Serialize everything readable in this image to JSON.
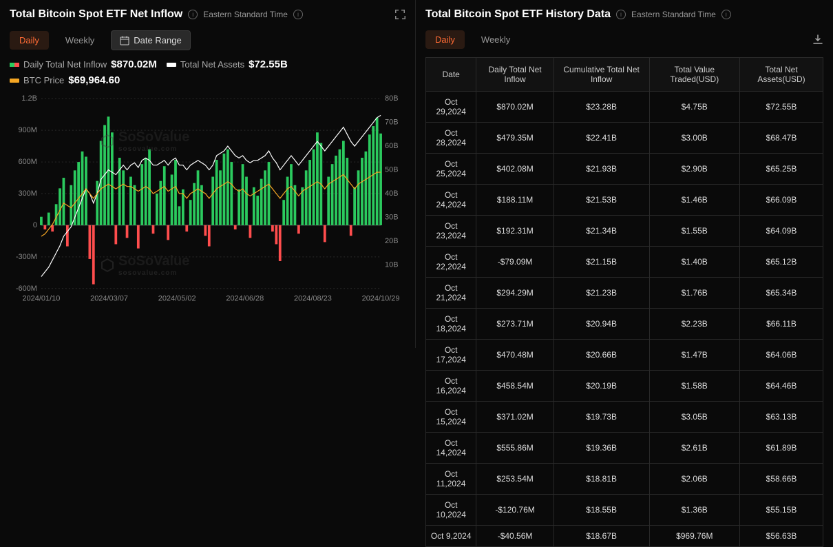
{
  "left": {
    "title": "Total Bitcoin Spot ETF Net Inflow",
    "timezone": "Eastern Standard Time",
    "tabs": {
      "daily": "Daily",
      "weekly": "Weekly",
      "dateRange": "Date Range"
    },
    "legend": {
      "netInflow": {
        "label": "Daily Total Net Inflow",
        "value": "$870.02M",
        "posColor": "#2bca5e",
        "negColor": "#ff4d4d"
      },
      "netAssets": {
        "label": "Total Net Assets",
        "value": "$72.55B",
        "color": "#ffffff"
      },
      "btcPrice": {
        "label": "BTC Price",
        "value": "$69,964.60",
        "color": "#f5a623"
      }
    },
    "chart": {
      "type": "combo",
      "background": "#0a0a0a",
      "grid_color": "#2a2a2a",
      "left_axis": {
        "label_fontsize": 11,
        "ticks": [
          "1.2B",
          "900M",
          "600M",
          "300M",
          "0",
          "-300M",
          "-600M"
        ],
        "ylim": [
          -600,
          1200
        ]
      },
      "right_axis": {
        "ticks": [
          "80B",
          "70B",
          "60B",
          "50B",
          "40B",
          "30B",
          "20B",
          "10B"
        ]
      },
      "x_ticks": [
        "2024/01/10",
        "2024/03/07",
        "2024/05/02",
        "2024/06/28",
        "2024/08/23",
        "2024/10/29"
      ],
      "bars": {
        "color_pos": "#2bca5e",
        "color_neg": "#ff4d4d",
        "values": [
          80,
          -40,
          120,
          -60,
          200,
          350,
          450,
          -200,
          380,
          520,
          600,
          700,
          650,
          -320,
          -560,
          420,
          800,
          950,
          1030,
          880,
          -180,
          640,
          520,
          -120,
          460,
          380,
          -220,
          580,
          640,
          720,
          -80,
          300,
          420,
          560,
          -140,
          480,
          620,
          180,
          340,
          -60,
          240,
          400,
          520,
          380,
          -100,
          -200,
          460,
          620,
          520,
          680,
          720,
          600,
          -40,
          340,
          580,
          460,
          -120,
          360,
          280,
          440,
          520,
          600,
          -60,
          -180,
          -340,
          240,
          460,
          580,
          380,
          -80,
          360,
          520,
          620,
          720,
          880,
          780,
          -160,
          460,
          580,
          660,
          720,
          800,
          640,
          -100,
          360,
          520,
          640,
          700,
          860,
          940,
          1020,
          870
        ]
      },
      "line_assets": {
        "color": "#ffffff",
        "width": 1.2,
        "values": [
          5,
          7,
          9,
          12,
          15,
          18,
          22,
          24,
          26,
          30,
          34,
          38,
          42,
          40,
          36,
          40,
          46,
          48,
          50,
          49,
          48,
          50,
          52,
          50,
          52,
          53,
          51,
          54,
          55,
          54,
          52,
          52,
          53,
          54,
          52,
          54,
          55,
          52,
          52,
          50,
          52,
          53,
          54,
          53,
          52,
          50,
          52,
          56,
          57,
          58,
          60,
          58,
          56,
          55,
          56,
          54,
          53,
          54,
          54,
          55,
          56,
          58,
          55,
          53,
          50,
          52,
          54,
          56,
          54,
          52,
          54,
          56,
          58,
          60,
          62,
          60,
          58,
          60,
          62,
          64,
          66,
          68,
          65,
          62,
          60,
          62,
          64,
          66,
          68,
          70,
          72,
          73
        ]
      },
      "line_btc": {
        "color": "#f5a623",
        "width": 1.2,
        "values": [
          22,
          23,
          25,
          27,
          30,
          33,
          36,
          35,
          34,
          36,
          38,
          40,
          42,
          40,
          38,
          40,
          42,
          43,
          44,
          43,
          42,
          43,
          44,
          43,
          43,
          42,
          41,
          42,
          43,
          42,
          40,
          41,
          42,
          43,
          41,
          42,
          43,
          40,
          40,
          38,
          40,
          41,
          42,
          41,
          40,
          38,
          40,
          42,
          43,
          44,
          45,
          44,
          42,
          41,
          42,
          40,
          39,
          40,
          41,
          42,
          43,
          44,
          42,
          40,
          38,
          40,
          42,
          43,
          41,
          39,
          41,
          42,
          43,
          44,
          45,
          44,
          42,
          44,
          45,
          46,
          47,
          48,
          46,
          44,
          42,
          44,
          45,
          46,
          47,
          48,
          49,
          49
        ]
      }
    },
    "watermark": {
      "text": "SoSoValue",
      "sub": "sosovalue.com"
    }
  },
  "right": {
    "title": "Total Bitcoin Spot ETF History Data",
    "timezone": "Eastern Standard Time",
    "tabs": {
      "daily": "Daily",
      "weekly": "Weekly"
    },
    "columns": [
      "Date",
      "Daily Total Net Inflow",
      "Cumulative Total Net Inflow",
      "Total Value Traded(USD)",
      "Total Net Assets(USD)"
    ],
    "rows": [
      {
        "date": "Oct 29,2024",
        "inflow": "$870.02M",
        "dir": "pos",
        "cum": "$23.28B",
        "traded": "$4.75B",
        "assets": "$72.55B"
      },
      {
        "date": "Oct 28,2024",
        "inflow": "$479.35M",
        "dir": "pos",
        "cum": "$22.41B",
        "traded": "$3.00B",
        "assets": "$68.47B"
      },
      {
        "date": "Oct 25,2024",
        "inflow": "$402.08M",
        "dir": "pos",
        "cum": "$21.93B",
        "traded": "$2.90B",
        "assets": "$65.25B"
      },
      {
        "date": "Oct 24,2024",
        "inflow": "$188.11M",
        "dir": "pos",
        "cum": "$21.53B",
        "traded": "$1.46B",
        "assets": "$66.09B"
      },
      {
        "date": "Oct 23,2024",
        "inflow": "$192.31M",
        "dir": "pos",
        "cum": "$21.34B",
        "traded": "$1.55B",
        "assets": "$64.09B"
      },
      {
        "date": "Oct 22,2024",
        "inflow": "-$79.09M",
        "dir": "neg",
        "cum": "$21.15B",
        "traded": "$1.40B",
        "assets": "$65.12B"
      },
      {
        "date": "Oct 21,2024",
        "inflow": "$294.29M",
        "dir": "pos",
        "cum": "$21.23B",
        "traded": "$1.76B",
        "assets": "$65.34B"
      },
      {
        "date": "Oct 18,2024",
        "inflow": "$273.71M",
        "dir": "pos",
        "cum": "$20.94B",
        "traded": "$2.23B",
        "assets": "$66.11B"
      },
      {
        "date": "Oct 17,2024",
        "inflow": "$470.48M",
        "dir": "pos",
        "cum": "$20.66B",
        "traded": "$1.47B",
        "assets": "$64.06B"
      },
      {
        "date": "Oct 16,2024",
        "inflow": "$458.54M",
        "dir": "pos",
        "cum": "$20.19B",
        "traded": "$1.58B",
        "assets": "$64.46B"
      },
      {
        "date": "Oct 15,2024",
        "inflow": "$371.02M",
        "dir": "pos",
        "cum": "$19.73B",
        "traded": "$3.05B",
        "assets": "$63.13B"
      },
      {
        "date": "Oct 14,2024",
        "inflow": "$555.86M",
        "dir": "pos",
        "cum": "$19.36B",
        "traded": "$2.61B",
        "assets": "$61.89B"
      },
      {
        "date": "Oct 11,2024",
        "inflow": "$253.54M",
        "dir": "pos",
        "cum": "$18.81B",
        "traded": "$2.06B",
        "assets": "$58.66B"
      },
      {
        "date": "Oct 10,2024",
        "inflow": "-$120.76M",
        "dir": "neg",
        "cum": "$18.55B",
        "traded": "$1.36B",
        "assets": "$55.15B"
      },
      {
        "date": "Oct 9,2024",
        "inflow": "-$40.56M",
        "dir": "neg",
        "cum": "$18.67B",
        "traded": "$969.76M",
        "assets": "$56.63B"
      }
    ]
  },
  "colors": {
    "text": "#e0e0e0",
    "accent": "#ff6b35",
    "positive": "#2bca5e",
    "negative": "#ff4d4d"
  }
}
